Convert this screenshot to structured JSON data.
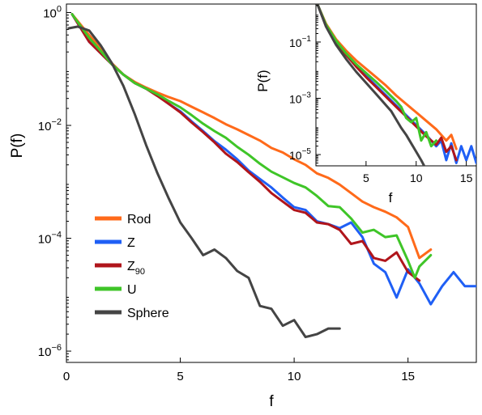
{
  "chart_data": [
    {
      "type": "line",
      "panel": "main",
      "xlabel": "f",
      "ylabel": "P(f)",
      "xlim": [
        0,
        18
      ],
      "ylim_log10": [
        -6.2,
        0.15
      ],
      "y_scale": "log",
      "x_ticks": [
        0,
        5,
        10,
        15
      ],
      "x_tick_labels": [
        "0",
        "5",
        "10",
        "15"
      ],
      "y_ticks_log10": [
        0,
        -2,
        -4,
        -6
      ],
      "y_tick_labels": [
        {
          "base": "10",
          "exp": "0"
        },
        {
          "base": "10",
          "exp": "−2"
        },
        {
          "base": "10",
          "exp": "−4"
        },
        {
          "base": "10",
          "exp": "−6"
        }
      ],
      "legend_position": "lower-left",
      "series": [
        {
          "name": "Rod",
          "color": "#ff6a1a",
          "points": [
            [
              0.25,
              -0.03
            ],
            [
              1,
              -0.4
            ],
            [
              1.5,
              -0.63
            ],
            [
              2,
              -0.9
            ],
            [
              2.5,
              -1.1
            ],
            [
              3,
              -1.23
            ],
            [
              3.5,
              -1.33
            ],
            [
              4,
              -1.42
            ],
            [
              4.5,
              -1.5
            ],
            [
              5,
              -1.57
            ],
            [
              5.5,
              -1.67
            ],
            [
              6,
              -1.77
            ],
            [
              6.5,
              -1.87
            ],
            [
              7,
              -1.98
            ],
            [
              7.5,
              -2.07
            ],
            [
              8,
              -2.17
            ],
            [
              8.5,
              -2.27
            ],
            [
              9,
              -2.4
            ],
            [
              9.5,
              -2.48
            ],
            [
              10,
              -2.6
            ],
            [
              10.5,
              -2.7
            ],
            [
              11,
              -2.85
            ],
            [
              11.5,
              -2.93
            ],
            [
              12,
              -3.05
            ],
            [
              12.5,
              -3.2
            ],
            [
              13,
              -3.35
            ],
            [
              13.5,
              -3.45
            ],
            [
              14,
              -3.53
            ],
            [
              14.5,
              -3.63
            ],
            [
              15,
              -3.8
            ],
            [
              15.5,
              -4.35
            ],
            [
              16,
              -4.2
            ]
          ]
        },
        {
          "name": "Z",
          "color": "#1f5ff5",
          "points": [
            [
              0.25,
              -0.03
            ],
            [
              1,
              -0.52
            ],
            [
              1.5,
              -0.72
            ],
            [
              2,
              -0.92
            ],
            [
              2.5,
              -1.1
            ],
            [
              3,
              -1.25
            ],
            [
              3.5,
              -1.35
            ],
            [
              4,
              -1.47
            ],
            [
              4.5,
              -1.62
            ],
            [
              5,
              -1.75
            ],
            [
              5.5,
              -1.93
            ],
            [
              6,
              -2.1
            ],
            [
              6.5,
              -2.28
            ],
            [
              7,
              -2.43
            ],
            [
              7.5,
              -2.6
            ],
            [
              8,
              -2.8
            ],
            [
              8.5,
              -2.95
            ],
            [
              9,
              -3.1
            ],
            [
              9.5,
              -3.28
            ],
            [
              10,
              -3.45
            ],
            [
              10.5,
              -3.5
            ],
            [
              11,
              -3.7
            ],
            [
              11.5,
              -3.75
            ],
            [
              12,
              -3.82
            ],
            [
              12.5,
              -3.72
            ],
            [
              13,
              -3.98
            ],
            [
              13.5,
              -4.45
            ],
            [
              14,
              -4.6
            ],
            [
              14.5,
              -5.05
            ],
            [
              15,
              -4.55
            ],
            [
              15.5,
              -4.8
            ],
            [
              16,
              -5.17
            ],
            [
              16.5,
              -4.85
            ],
            [
              17,
              -4.6
            ],
            [
              17.5,
              -4.85
            ],
            [
              18,
              -4.85
            ]
          ]
        },
        {
          "name": "Z90",
          "color": "#b0151b",
          "points": [
            [
              0.25,
              -0.03
            ],
            [
              1,
              -0.52
            ],
            [
              1.5,
              -0.72
            ],
            [
              2,
              -0.92
            ],
            [
              2.5,
              -1.1
            ],
            [
              3,
              -1.25
            ],
            [
              3.5,
              -1.35
            ],
            [
              4,
              -1.48
            ],
            [
              4.5,
              -1.62
            ],
            [
              5,
              -1.77
            ],
            [
              5.5,
              -1.95
            ],
            [
              6,
              -2.12
            ],
            [
              6.5,
              -2.3
            ],
            [
              7,
              -2.5
            ],
            [
              7.5,
              -2.65
            ],
            [
              8,
              -2.83
            ],
            [
              8.5,
              -3.0
            ],
            [
              9,
              -3.2
            ],
            [
              9.5,
              -3.35
            ],
            [
              10,
              -3.5
            ],
            [
              10.5,
              -3.55
            ],
            [
              11,
              -3.72
            ],
            [
              11.5,
              -3.75
            ],
            [
              12,
              -3.85
            ],
            [
              12.5,
              -4.1
            ],
            [
              13,
              -4.05
            ],
            [
              13.5,
              -4.35
            ],
            [
              14,
              -4.4
            ],
            [
              14.5,
              -4.25
            ],
            [
              15,
              -4.6
            ],
            [
              15.5,
              -4.75
            ]
          ]
        },
        {
          "name": "U",
          "color": "#3fc528",
          "points": [
            [
              0.25,
              -0.03
            ],
            [
              1,
              -0.45
            ],
            [
              1.5,
              -0.68
            ],
            [
              2,
              -0.92
            ],
            [
              2.5,
              -1.1
            ],
            [
              3,
              -1.25
            ],
            [
              3.5,
              -1.35
            ],
            [
              4,
              -1.45
            ],
            [
              4.5,
              -1.57
            ],
            [
              5,
              -1.68
            ],
            [
              5.5,
              -1.82
            ],
            [
              6,
              -1.97
            ],
            [
              6.5,
              -2.1
            ],
            [
              7,
              -2.22
            ],
            [
              7.5,
              -2.38
            ],
            [
              8,
              -2.52
            ],
            [
              8.5,
              -2.68
            ],
            [
              9,
              -2.82
            ],
            [
              9.5,
              -2.92
            ],
            [
              10,
              -3.02
            ],
            [
              10.5,
              -3.1
            ],
            [
              11,
              -3.25
            ],
            [
              11.5,
              -3.43
            ],
            [
              12,
              -3.45
            ],
            [
              12.5,
              -3.65
            ],
            [
              13,
              -3.9
            ],
            [
              13.5,
              -3.85
            ],
            [
              14,
              -3.98
            ],
            [
              14.5,
              -3.95
            ],
            [
              15,
              -4.4
            ],
            [
              15.3,
              -4.7
            ],
            [
              15.5,
              -4.5
            ],
            [
              16,
              -4.3
            ]
          ]
        },
        {
          "name": "Sphere",
          "color": "#444444",
          "points": [
            [
              0.1,
              -0.28
            ],
            [
              0.5,
              -0.25
            ],
            [
              1,
              -0.32
            ],
            [
              1.5,
              -0.58
            ],
            [
              2,
              -0.9
            ],
            [
              2.5,
              -1.3
            ],
            [
              3,
              -1.8
            ],
            [
              3.5,
              -2.35
            ],
            [
              4,
              -2.85
            ],
            [
              4.5,
              -3.3
            ],
            [
              5,
              -3.72
            ],
            [
              5.5,
              -4.0
            ],
            [
              6,
              -4.3
            ],
            [
              6.5,
              -4.2
            ],
            [
              7,
              -4.35
            ],
            [
              7.5,
              -4.58
            ],
            [
              8,
              -4.7
            ],
            [
              8.5,
              -5.2
            ],
            [
              9,
              -5.25
            ],
            [
              9.5,
              -5.55
            ],
            [
              10,
              -5.45
            ],
            [
              10.5,
              -5.75
            ],
            [
              11,
              -5.7
            ],
            [
              11.5,
              -5.6
            ],
            [
              12,
              -5.6
            ]
          ]
        }
      ]
    },
    {
      "type": "line",
      "panel": "inset",
      "xlabel": "f",
      "ylabel": "P(f)",
      "xlim": [
        0,
        16
      ],
      "ylim_log10": [
        -5.4,
        0.35
      ],
      "y_scale": "log",
      "x_ticks": [
        5,
        10,
        15
      ],
      "x_tick_labels": [
        "5",
        "10",
        "15"
      ],
      "y_ticks_log10": [
        -1,
        -3,
        -5
      ],
      "y_tick_labels": [
        {
          "base": "10",
          "exp": "−1"
        },
        {
          "base": "10",
          "exp": "−3"
        },
        {
          "base": "10",
          "exp": "−5"
        }
      ],
      "series": [
        {
          "name": "Rod",
          "color": "#ff6a1a",
          "points": [
            [
              0.2,
              0.3
            ],
            [
              1,
              -0.35
            ],
            [
              2,
              -0.9
            ],
            [
              3,
              -1.3
            ],
            [
              4,
              -1.65
            ],
            [
              5,
              -1.95
            ],
            [
              6,
              -2.25
            ],
            [
              7,
              -2.55
            ],
            [
              8,
              -2.9
            ],
            [
              9,
              -3.2
            ],
            [
              10,
              -3.5
            ],
            [
              11,
              -3.8
            ],
            [
              12,
              -4.1
            ],
            [
              13,
              -4.5
            ],
            [
              13.5,
              -4.3
            ],
            [
              14,
              -4.8
            ]
          ]
        },
        {
          "name": "Z",
          "color": "#1f5ff5",
          "points": [
            [
              0.2,
              0.3
            ],
            [
              1,
              -0.42
            ],
            [
              2,
              -1.0
            ],
            [
              3,
              -1.45
            ],
            [
              4,
              -1.85
            ],
            [
              5,
              -2.2
            ],
            [
              6,
              -2.55
            ],
            [
              7,
              -2.9
            ],
            [
              8,
              -3.25
            ],
            [
              9,
              -3.6
            ],
            [
              10,
              -3.95
            ],
            [
              11,
              -4.3
            ],
            [
              12,
              -4.7
            ],
            [
              12.5,
              -4.5
            ],
            [
              13,
              -5.2
            ],
            [
              13.5,
              -4.6
            ],
            [
              14,
              -5.3
            ],
            [
              14.5,
              -4.7
            ],
            [
              15,
              -5.2
            ],
            [
              15.5,
              -4.7
            ],
            [
              16,
              -5.3
            ]
          ]
        },
        {
          "name": "Z90",
          "color": "#b0151b",
          "points": [
            [
              0.2,
              0.3
            ],
            [
              1,
              -0.42
            ],
            [
              2,
              -1.0
            ],
            [
              3,
              -1.45
            ],
            [
              4,
              -1.87
            ],
            [
              5,
              -2.25
            ],
            [
              6,
              -2.6
            ],
            [
              7,
              -2.95
            ],
            [
              8,
              -3.3
            ],
            [
              9,
              -3.65
            ],
            [
              10,
              -4.0
            ],
            [
              11,
              -4.35
            ],
            [
              12,
              -4.65
            ],
            [
              12.5,
              -4.4
            ],
            [
              13,
              -4.9
            ],
            [
              13.5,
              -4.7
            ],
            [
              14,
              -5.2
            ]
          ]
        },
        {
          "name": "U",
          "color": "#3fc528",
          "points": [
            [
              0.2,
              0.3
            ],
            [
              1,
              -0.38
            ],
            [
              2,
              -0.95
            ],
            [
              3,
              -1.4
            ],
            [
              4,
              -1.78
            ],
            [
              5,
              -2.1
            ],
            [
              6,
              -2.42
            ],
            [
              7,
              -2.75
            ],
            [
              8,
              -3.1
            ],
            [
              8.5,
              -3.3
            ],
            [
              9,
              -3.7
            ],
            [
              9.5,
              -3.85
            ],
            [
              10,
              -3.7
            ],
            [
              10.5,
              -4.5
            ],
            [
              11,
              -4.2
            ],
            [
              11.5,
              -4.7
            ],
            [
              12,
              -4.5
            ]
          ]
        },
        {
          "name": "Sphere",
          "color": "#444444",
          "points": [
            [
              0.2,
              0.3
            ],
            [
              1,
              -0.45
            ],
            [
              2,
              -1.1
            ],
            [
              3,
              -1.6
            ],
            [
              4,
              -2.05
            ],
            [
              5,
              -2.45
            ],
            [
              6,
              -2.85
            ],
            [
              7,
              -3.25
            ],
            [
              7.5,
              -3.45
            ],
            [
              8,
              -3.75
            ],
            [
              8.5,
              -4.05
            ],
            [
              9,
              -4.3
            ],
            [
              9.5,
              -4.6
            ],
            [
              10,
              -4.9
            ],
            [
              10.5,
              -5.2
            ],
            [
              10.8,
              -5.4
            ]
          ]
        }
      ]
    }
  ]
}
